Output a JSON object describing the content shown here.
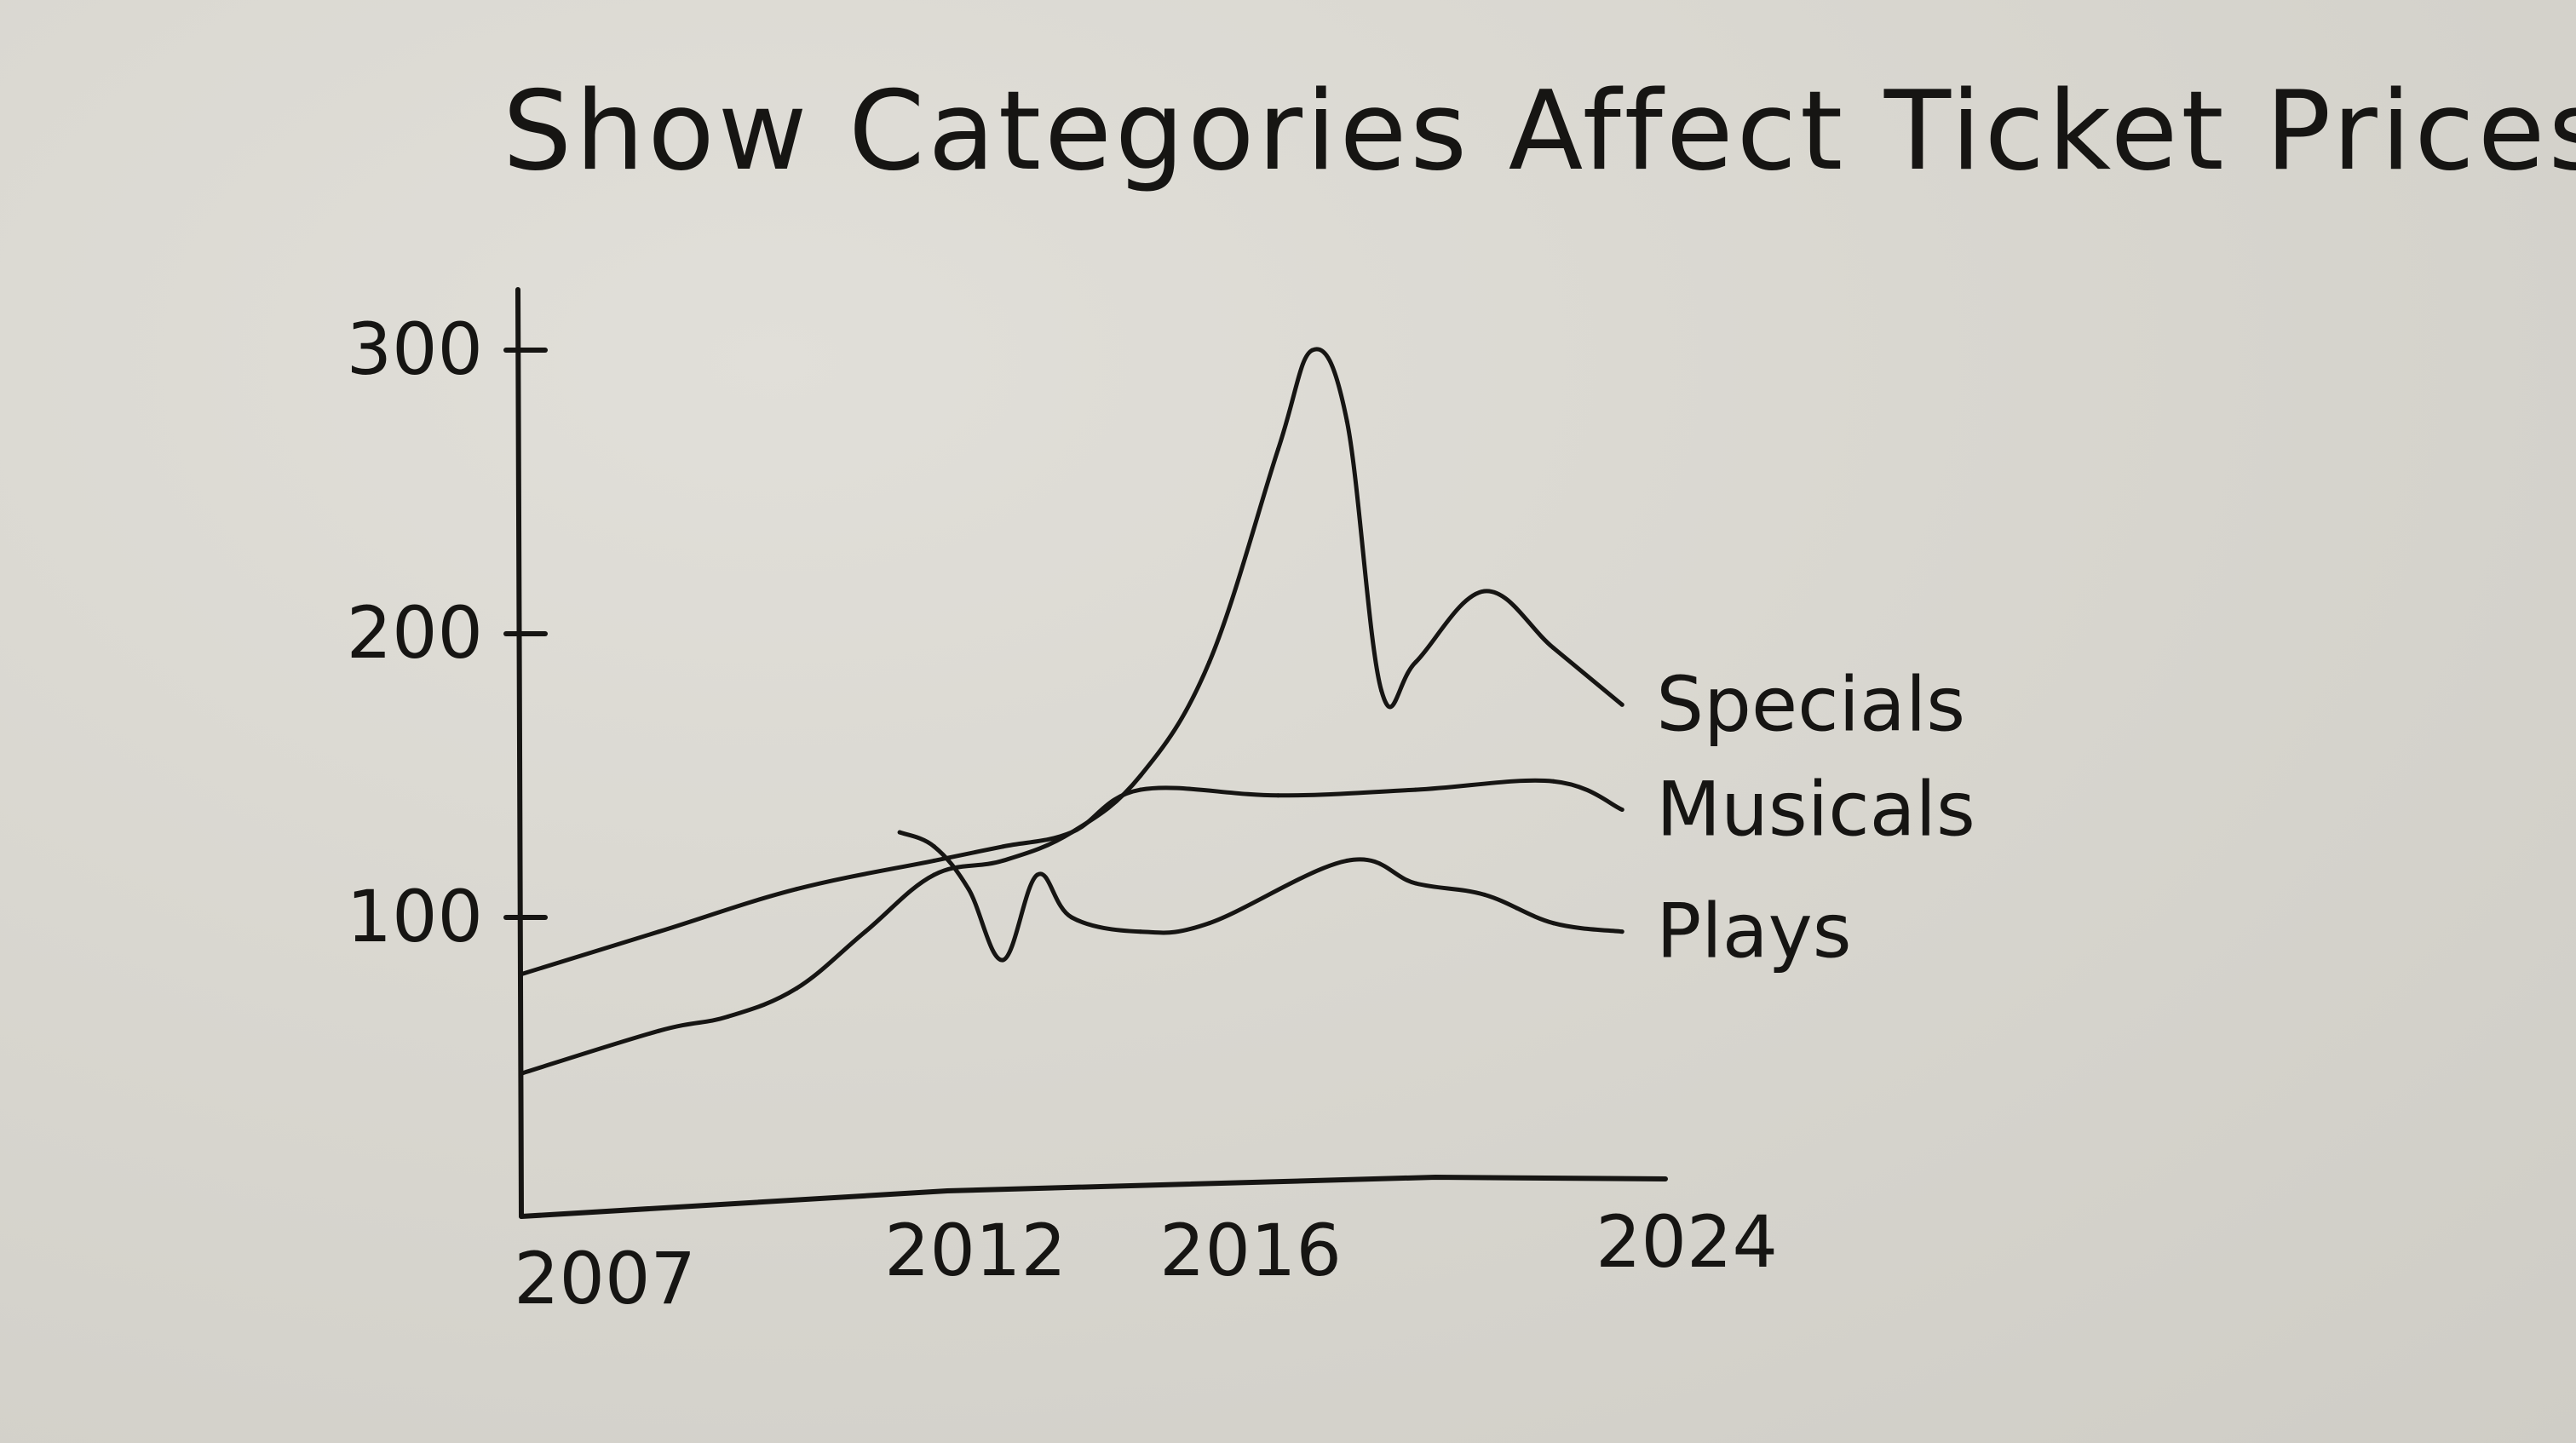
{
  "chart_data": {
    "type": "line",
    "title": "Show Categories Affect Ticket Prices",
    "xlabel": "",
    "ylabel": "",
    "x_ticks": [
      2007,
      2012,
      2016,
      2024
    ],
    "y_ticks": [
      100,
      200,
      300
    ],
    "xlim": [
      2007,
      2024
    ],
    "ylim": [
      0,
      310
    ],
    "grid": false,
    "series": [
      {
        "name": "Specials",
        "x": [
          2007,
          2009,
          2010,
          2011,
          2012,
          2013,
          2014,
          2015,
          2016,
          2017,
          2018,
          2018.5,
          2019,
          2019.5,
          2020,
          2021,
          2022,
          2023
        ],
        "y": [
          45,
          60,
          65,
          75,
          95,
          115,
          120,
          130,
          150,
          190,
          265,
          300,
          275,
          180,
          190,
          215,
          195,
          175
        ]
      },
      {
        "name": "Musicals",
        "x": [
          2007,
          2009,
          2011,
          2013,
          2014,
          2015,
          2016,
          2018,
          2020,
          2022,
          2023
        ],
        "y": [
          80,
          95,
          110,
          120,
          125,
          130,
          145,
          143,
          145,
          148,
          138
        ]
      },
      {
        "name": "Plays",
        "x": [
          2012.5,
          2013,
          2013.5,
          2014,
          2014.5,
          2015,
          2016,
          2017,
          2019,
          2020,
          2021,
          2022,
          2023
        ],
        "y": [
          130,
          125,
          110,
          85,
          115,
          100,
          95,
          98,
          120,
          112,
          108,
          98,
          95
        ]
      }
    ]
  }
}
